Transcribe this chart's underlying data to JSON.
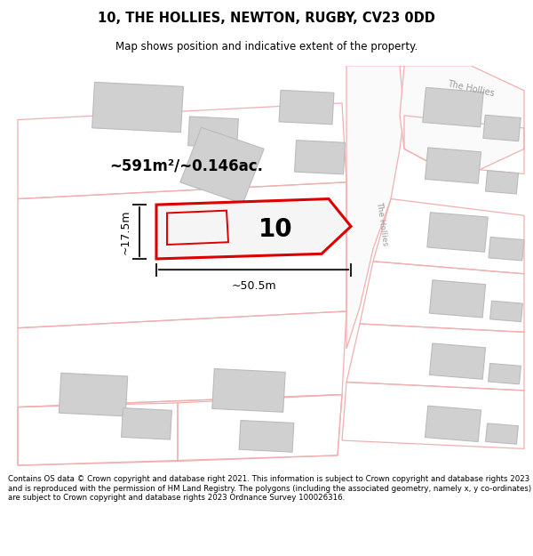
{
  "title": "10, THE HOLLIES, NEWTON, RUGBY, CV23 0DD",
  "subtitle": "Map shows position and indicative extent of the property.",
  "footer": "Contains OS data © Crown copyright and database right 2021. This information is subject to Crown copyright and database rights 2023 and is reproduced with the permission of HM Land Registry. The polygons (including the associated geometry, namely x, y co-ordinates) are subject to Crown copyright and database rights 2023 Ordnance Survey 100026316.",
  "area_label": "~591m²/~0.146ac.",
  "width_label": "~50.5m",
  "height_label": "~17.5m",
  "plot_number": "10",
  "road_label_diag": "The Hollies",
  "road_label_top": "The Hollies",
  "plot_edge_color": "#dd0000",
  "plot_edge_width": 2.2,
  "building_fill": "#d0d0d0",
  "building_edge": "#bbbbbb",
  "road_fill": "#f9f9f9",
  "road_outline_color": "#f0b0b0",
  "dim_color": "#222222",
  "bg_color": "#ffffff"
}
